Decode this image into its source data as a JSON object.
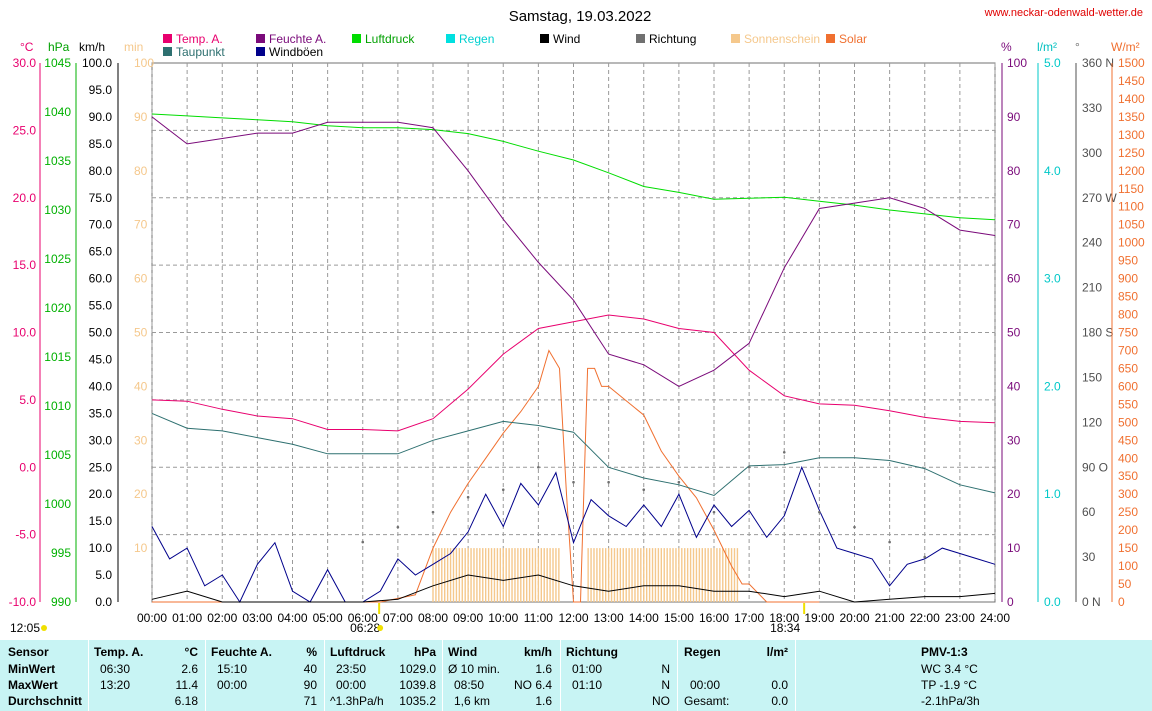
{
  "title": "Samstag, 19.03.2022",
  "website": "www.neckar-odenwald-wetter.de",
  "legend": [
    {
      "label": "Temp. A.",
      "color": "#e8006e"
    },
    {
      "label": "Taupunkt",
      "color": "#2e7070"
    },
    {
      "label": "Feuchte A.",
      "color": "#7a0a7a"
    },
    {
      "label": "Windböen",
      "color": "#00008b"
    },
    {
      "label": "Luftdruck",
      "color": "#00dd00"
    },
    {
      "label": "Regen",
      "color": "#00e0e0"
    },
    {
      "label": "Wind",
      "color": "#000000"
    },
    {
      "label": "Richtung",
      "color": "#707070"
    },
    {
      "label": "Sonnenschein",
      "color": "#f5c88c"
    },
    {
      "label": "Solar",
      "color": "#f07030"
    }
  ],
  "axis_units": {
    "temp": "°C",
    "press": "hPa",
    "wind": "km/h",
    "sun": "min",
    "hum": "%",
    "rain": "l/m²",
    "dir": "°",
    "solar": "W/m²"
  },
  "axes": {
    "temp_ticks": [
      "30.0",
      "25.0",
      "20.0",
      "15.0",
      "10.0",
      "5.0",
      "0.0",
      "-5.0",
      "-10.0"
    ],
    "press_ticks": [
      "1045",
      "1040",
      "1035",
      "1030",
      "1025",
      "1020",
      "1015",
      "1010",
      "1005",
      "1000",
      "995",
      "990"
    ],
    "wind_ticks": [
      "100.0",
      "95.0",
      "90.0",
      "85.0",
      "80.0",
      "75.0",
      "70.0",
      "65.0",
      "60.0",
      "55.0",
      "50.0",
      "45.0",
      "40.0",
      "35.0",
      "30.0",
      "25.0",
      "20.0",
      "15.0",
      "10.0",
      "5.0",
      "0.0"
    ],
    "sun_ticks": [
      "100",
      "90",
      "80",
      "70",
      "60",
      "50",
      "40",
      "30",
      "20",
      "10"
    ],
    "hum_ticks": [
      "100",
      "90",
      "80",
      "70",
      "60",
      "50",
      "40",
      "30",
      "20",
      "10",
      "0"
    ],
    "rain_ticks": [
      "5.0",
      "4.0",
      "3.0",
      "2.0",
      "1.0",
      "0.0"
    ],
    "dir_ticks": [
      "360 N",
      "330",
      "300",
      "270 W",
      "240",
      "210",
      "180 S",
      "150",
      "120",
      "90 O",
      "60",
      "30",
      "0 N"
    ],
    "solar_ticks": [
      "1500",
      "1450",
      "1400",
      "1350",
      "1300",
      "1250",
      "1200",
      "1150",
      "1100",
      "1050",
      "1000",
      "950",
      "900",
      "850",
      "800",
      "750",
      "700",
      "650",
      "600",
      "550",
      "500",
      "450",
      "400",
      "350",
      "300",
      "250",
      "200",
      "150",
      "100",
      "50",
      "0"
    ],
    "time_ticks": [
      "00:00",
      "01:00",
      "02:00",
      "03:00",
      "04:00",
      "05:00",
      "06:00",
      "07:00",
      "08:00",
      "09:00",
      "10:00",
      "11:00",
      "12:00",
      "13:00",
      "14:00",
      "15:00",
      "16:00",
      "17:00",
      "18:00",
      "19:00",
      "20:00",
      "21:00",
      "22:00",
      "23:00",
      "24:00"
    ]
  },
  "markers": {
    "moon": "12:05",
    "sunrise": "06:28",
    "sunset": "18:34"
  },
  "chart_data": {
    "type": "line",
    "title": "Samstag, 19.03.2022",
    "x_unit": "hour",
    "series": [
      {
        "name": "Temp. A.",
        "unit": "°C",
        "x": [
          0,
          1,
          2,
          3,
          4,
          5,
          6,
          7,
          8,
          9,
          10,
          11,
          12,
          13,
          14,
          15,
          16,
          17,
          18,
          19,
          20,
          21,
          22,
          23,
          24
        ],
        "values": [
          5.0,
          4.9,
          4.3,
          3.8,
          3.6,
          2.8,
          2.8,
          2.7,
          3.6,
          5.8,
          8.4,
          10.3,
          10.8,
          11.3,
          11.0,
          10.3,
          10.0,
          7.2,
          5.3,
          4.7,
          4.6,
          4.2,
          3.7,
          3.4,
          3.3
        ]
      },
      {
        "name": "Taupunkt",
        "unit": "°C",
        "x": [
          0,
          1,
          2,
          3,
          4,
          5,
          6,
          7,
          8,
          9,
          10,
          11,
          12,
          13,
          14,
          15,
          16,
          17,
          18,
          19,
          20,
          21,
          22,
          23,
          24
        ],
        "values": [
          4.0,
          2.9,
          2.7,
          2.2,
          1.7,
          1.0,
          1.0,
          1.0,
          2.0,
          2.7,
          3.4,
          3.1,
          2.6,
          0.0,
          -0.8,
          -1.3,
          -2.1,
          0.1,
          0.2,
          0.7,
          0.7,
          0.5,
          -0.1,
          -1.3,
          -1.9
        ]
      },
      {
        "name": "Feuchte A.",
        "unit": "%",
        "x": [
          0,
          1,
          2,
          3,
          4,
          5,
          6,
          7,
          8,
          9,
          10,
          11,
          12,
          13,
          14,
          15,
          16,
          17,
          18,
          19,
          20,
          21,
          22,
          23,
          24
        ],
        "values": [
          90,
          85,
          86,
          87,
          87,
          89,
          89,
          89,
          88,
          80,
          71,
          63,
          56,
          46,
          44,
          40,
          43,
          48,
          62,
          73,
          74,
          75,
          73,
          69,
          68
        ]
      },
      {
        "name": "Luftdruck",
        "unit": "hPa",
        "x": [
          0,
          1,
          2,
          3,
          4,
          5,
          6,
          7,
          8,
          9,
          10,
          11,
          12,
          13,
          14,
          15,
          16,
          17,
          18,
          19,
          20,
          21,
          22,
          23,
          24
        ],
        "values": [
          1039.8,
          1039.6,
          1039.4,
          1039.2,
          1039.0,
          1038.6,
          1038.4,
          1038.4,
          1038.2,
          1037.8,
          1037.0,
          1036.0,
          1035.1,
          1033.8,
          1032.4,
          1031.8,
          1031.1,
          1031.2,
          1031.3,
          1030.9,
          1030.5,
          1030.0,
          1029.6,
          1029.2,
          1029.0
        ]
      },
      {
        "name": "Windböen",
        "unit": "km/h",
        "x": [
          0,
          0.5,
          1,
          1.5,
          2,
          2.5,
          3,
          3.5,
          4,
          4.5,
          5,
          5.5,
          6,
          6.5,
          7,
          7.5,
          8,
          8.5,
          9,
          9.5,
          10,
          10.5,
          11,
          11.5,
          12,
          12.5,
          13,
          13.5,
          14,
          14.5,
          15,
          15.5,
          16,
          16.5,
          17,
          17.5,
          18,
          18.5,
          19,
          19.5,
          20,
          20.5,
          21,
          21.5,
          22,
          22.5,
          23,
          23.5,
          24
        ],
        "values": [
          14,
          8,
          10,
          3,
          5,
          0,
          7,
          11,
          2,
          0,
          6,
          0,
          0,
          2,
          8,
          5,
          7,
          9,
          13,
          20,
          14,
          22,
          18,
          24,
          11,
          19,
          16,
          14,
          18,
          14,
          20,
          12,
          18,
          14,
          17,
          12,
          16,
          25,
          17,
          10,
          9,
          8,
          3,
          7,
          8,
          10,
          9,
          8,
          7
        ]
      },
      {
        "name": "Wind",
        "unit": "km/h",
        "x": [
          0,
          1,
          2,
          3,
          4,
          5,
          6,
          7,
          8,
          9,
          10,
          11,
          12,
          13,
          14,
          15,
          16,
          17,
          18,
          19,
          20,
          21,
          22,
          23,
          24
        ],
        "values": [
          0.5,
          2,
          0,
          0,
          0,
          0,
          0,
          0.5,
          3,
          5,
          4,
          5,
          3,
          2,
          3,
          3,
          2,
          2,
          1,
          2,
          0,
          0.5,
          1,
          1,
          1.6
        ]
      },
      {
        "name": "Richtung",
        "unit": "°",
        "x": [
          6,
          7,
          8,
          9,
          10,
          11,
          12,
          13,
          14,
          15,
          16,
          17,
          18,
          19,
          20,
          21,
          22
        ],
        "values": [
          40,
          50,
          60,
          70,
          75,
          90,
          80,
          80,
          75,
          80,
          60,
          90,
          100,
          60,
          50,
          40,
          30
        ]
      },
      {
        "name": "Sonnenschein",
        "unit": "min",
        "x": [
          8,
          9,
          10,
          11,
          11.6,
          12.4,
          13,
          14,
          15,
          16,
          16.7
        ],
        "values": [
          10,
          10,
          10,
          10,
          10,
          10,
          10,
          10,
          10,
          10,
          10
        ]
      },
      {
        "name": "Solar",
        "unit": "W/m²",
        "x": [
          0,
          6.5,
          7.5,
          8,
          8.5,
          9,
          9.5,
          10,
          10.5,
          11,
          11.3,
          11.6,
          11.8,
          12,
          12.2,
          12.4,
          12.6,
          12.8,
          13,
          13.5,
          14,
          14.5,
          15,
          15.5,
          16,
          16.5,
          16.8,
          17,
          17.5,
          18,
          18.5,
          19
        ],
        "values": [
          0,
          0,
          20,
          150,
          250,
          330,
          400,
          470,
          530,
          600,
          700,
          650,
          300,
          0,
          0,
          650,
          650,
          600,
          600,
          560,
          520,
          420,
          350,
          290,
          200,
          100,
          50,
          50,
          0,
          0,
          0,
          0
        ]
      }
    ],
    "axis_ranges": {
      "temp": [
        -10,
        30
      ],
      "press": [
        990,
        1045
      ],
      "wind": [
        0,
        100
      ],
      "hum": [
        0,
        100
      ],
      "rain": [
        0,
        5
      ],
      "dir": [
        0,
        360
      ],
      "solar": [
        0,
        1500
      ],
      "x": [
        0,
        24
      ]
    },
    "grid": true
  },
  "stats": {
    "sensor": {
      "header": "Sensor",
      "rows": [
        "MinWert",
        "MaxWert",
        "Durchschnitt"
      ]
    },
    "temp": {
      "header": "Temp. A.",
      "unit": "°C",
      "time": [
        "06:30",
        "13:20",
        ""
      ],
      "val": [
        "2.6",
        "11.4",
        "6.18"
      ]
    },
    "hum": {
      "header": "Feuchte A.",
      "unit": "%",
      "time": [
        "15:10",
        "00:00",
        ""
      ],
      "val": [
        "40",
        "90",
        "71"
      ]
    },
    "press": {
      "header": "Luftdruck",
      "unit": "hPa",
      "time": [
        "23:50",
        "00:00",
        "^1.3hPa/h"
      ],
      "val": [
        "1029.0",
        "1039.8",
        "1035.2"
      ]
    },
    "wind": {
      "header": "Wind",
      "unit": "km/h",
      "time": [
        "Ø 10 min.",
        "08:50",
        "1,6 km"
      ],
      "val": [
        "1.6",
        "NO 6.4",
        "1.6"
      ]
    },
    "dir": {
      "header": "Richtung",
      "time": [
        "01:00",
        "01:10",
        ""
      ],
      "val": [
        "N",
        "N",
        "NO"
      ]
    },
    "rain": {
      "header": "Regen",
      "unit": "l/m²",
      "time": [
        "",
        "00:00",
        "Gesamt:"
      ],
      "val": [
        "",
        "0.0",
        "0.0"
      ]
    },
    "pmv": {
      "header": "PMV-1:3",
      "rows": [
        "WC 3.4 °C",
        "TP -1.9 °C",
        "-2.1hPa/3h"
      ]
    }
  }
}
